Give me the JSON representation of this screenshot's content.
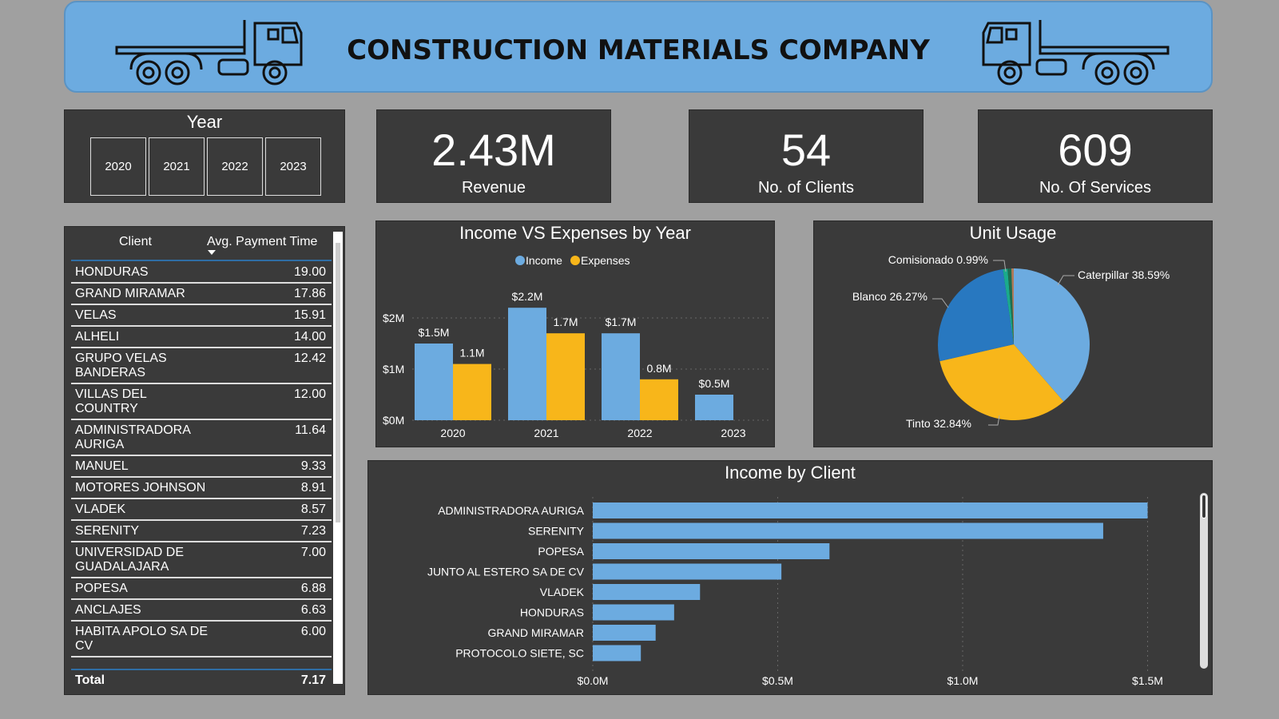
{
  "header": {
    "title": "CONSTRUCTION MATERIALS COMPANY"
  },
  "year_slicer": {
    "label": "Year",
    "options": [
      "2020",
      "2021",
      "2022",
      "2023"
    ]
  },
  "kpis": [
    {
      "value": "2.43M",
      "label": "Revenue"
    },
    {
      "value": "54",
      "label": "No. of Clients"
    },
    {
      "value": "609",
      "label": "No. Of Services"
    }
  ],
  "table": {
    "headers": [
      "Client",
      "Avg. Payment Time"
    ],
    "sort_icon": "sort-desc-icon",
    "rows": [
      [
        "HONDURAS",
        "19.00"
      ],
      [
        "GRAND MIRAMAR",
        "17.86"
      ],
      [
        "VELAS",
        "15.91"
      ],
      [
        "ALHELI",
        "14.00"
      ],
      [
        "GRUPO VELAS BANDERAS",
        "12.42"
      ],
      [
        "VILLAS DEL COUNTRY",
        "12.00"
      ],
      [
        "ADMINISTRADORA AURIGA",
        "11.64"
      ],
      [
        "MANUEL",
        "9.33"
      ],
      [
        "MOTORES JOHNSON",
        "8.91"
      ],
      [
        "VLADEK",
        "8.57"
      ],
      [
        "SERENITY",
        "7.23"
      ],
      [
        "UNIVERSIDAD DE GUADALAJARA",
        "7.00"
      ],
      [
        "POPESA",
        "6.88"
      ],
      [
        "ANCLAJES",
        "6.63"
      ],
      [
        "HABITA APOLO SA DE CV",
        "6.00"
      ]
    ],
    "total": [
      "Total",
      "7.17"
    ]
  },
  "chart_data": [
    {
      "type": "bar",
      "title": "Income VS Expenses by Year",
      "categories": [
        "2020",
        "2021",
        "2022",
        "2023"
      ],
      "series": [
        {
          "name": "Income",
          "values": [
            1.5,
            2.2,
            1.7,
            0.5
          ],
          "labels": [
            "$1.5M",
            "$2.2M",
            "$1.7M",
            "$0.5M"
          ],
          "color": "#6cabe0"
        },
        {
          "name": "Expenses",
          "values": [
            1.1,
            1.7,
            0.8,
            null
          ],
          "labels": [
            "1.1M",
            "1.7M",
            "0.8M",
            ""
          ],
          "color": "#f8b61a"
        }
      ],
      "yticks": [
        "$0M",
        "$1M",
        "$2M"
      ],
      "ylim": [
        0,
        2.5
      ],
      "legend": "top-center",
      "grid": true
    },
    {
      "type": "pie",
      "title": "Unit Usage",
      "slices": [
        {
          "name": "Caterpillar",
          "label": "Caterpillar 38.59%",
          "value": 38.59,
          "color": "#6cabe0"
        },
        {
          "name": "Tinto",
          "label": "Tinto 32.84%",
          "value": 32.84,
          "color": "#f8b61a"
        },
        {
          "name": "Blanco",
          "label": "Blanco 26.27%",
          "value": 26.27,
          "color": "#2878c0"
        },
        {
          "name": "Comisionado",
          "label": "Comisionado 0.99%",
          "value": 0.99,
          "color": "#1aab8c"
        },
        {
          "value": 0.8,
          "color": "#1c6e50"
        },
        {
          "value": 0.51,
          "color": "#b07a5a"
        }
      ]
    },
    {
      "type": "bar",
      "orientation": "horizontal",
      "title": "Income by Client",
      "categories": [
        "ADMINISTRADORA AURIGA",
        "SERENITY",
        "POPESA",
        "JUNTO AL ESTERO SA DE CV",
        "VLADEK",
        "HONDURAS",
        "GRAND MIRAMAR",
        "PROTOCOLO SIETE, SC"
      ],
      "values": [
        1.5,
        1.38,
        0.64,
        0.51,
        0.29,
        0.22,
        0.17,
        0.13
      ],
      "xticks": [
        "$0.0M",
        "$0.5M",
        "$1.0M",
        "$1.5M"
      ],
      "xlim": [
        0,
        1.5
      ],
      "color": "#6cabe0",
      "grid": true
    }
  ]
}
